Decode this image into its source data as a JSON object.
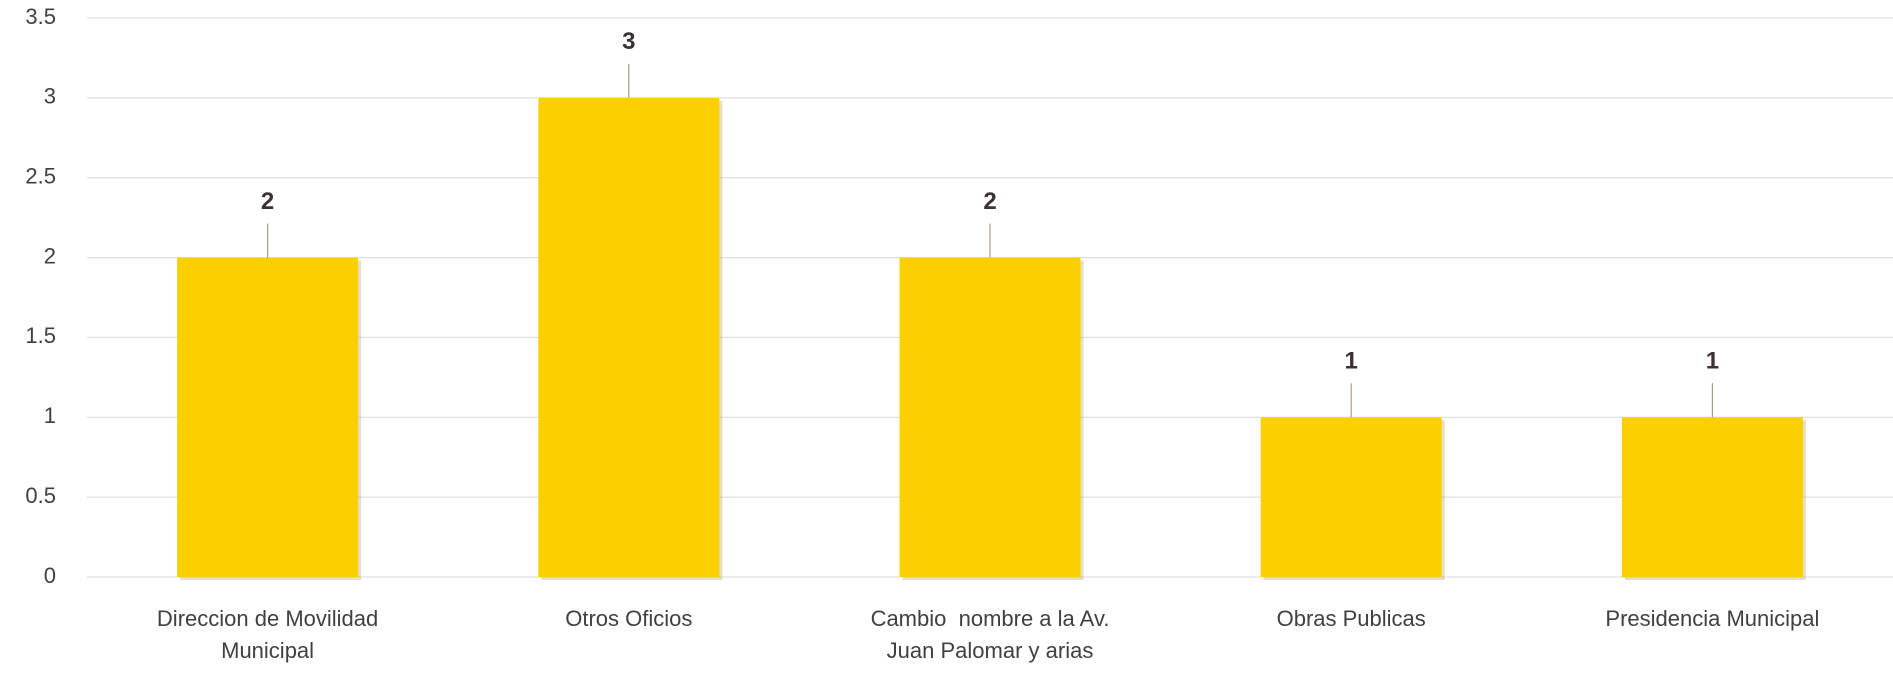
{
  "chart_data": {
    "type": "bar",
    "categories": [
      "Direccion de Movilidad Municipal",
      "Otros Oficios",
      "Cambio  nombre a la Av. Juan Palomar y arias",
      "Obras Publicas",
      "Presidencia Municipal"
    ],
    "values": [
      2,
      3,
      2,
      1,
      1
    ],
    "color": "#fcd000",
    "ylim": [
      0,
      3.5
    ],
    "yticks": [
      0,
      0.5,
      1,
      1.5,
      2,
      2.5,
      3,
      3.5
    ],
    "grid": true
  }
}
